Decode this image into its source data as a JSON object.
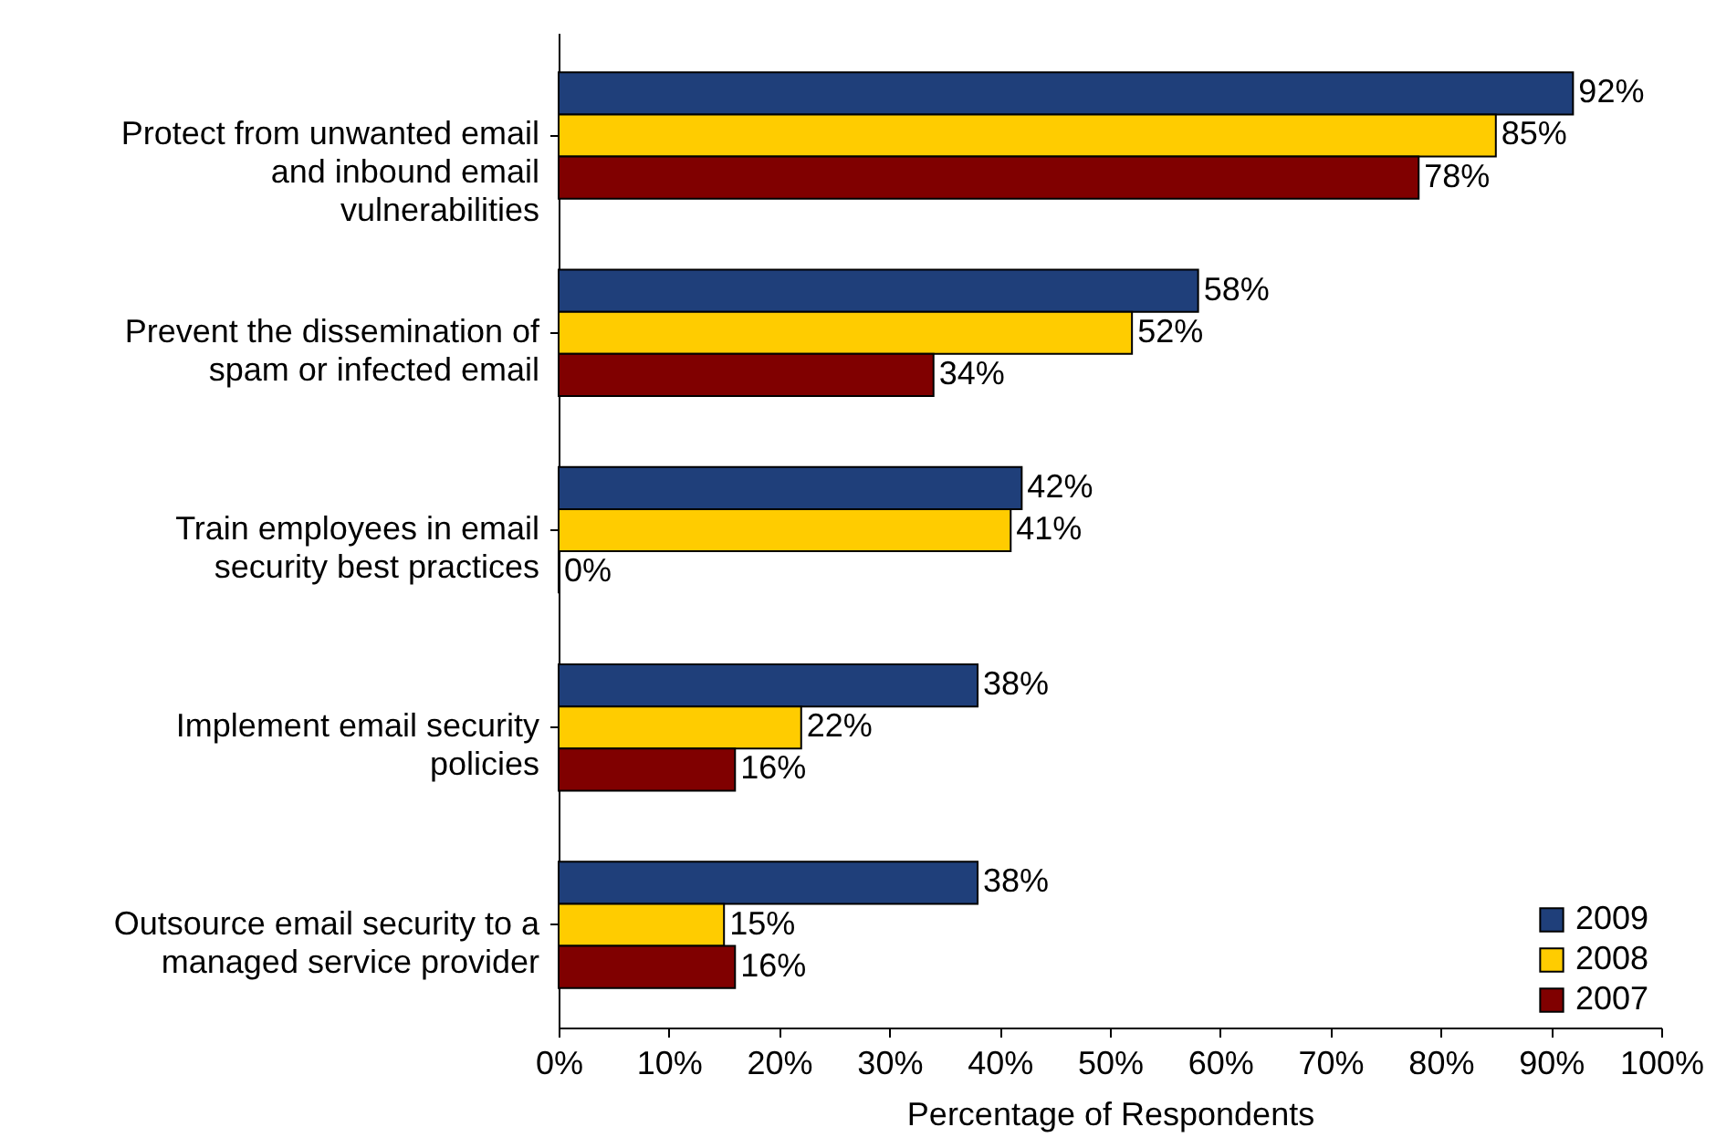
{
  "chart_data": {
    "type": "bar",
    "orientation": "horizontal",
    "xlabel": "Percentage of Respondents",
    "categories": [
      "Protect from unwanted email and inbound email vulnerabilities",
      "Prevent the dissemination of spam or infected email",
      "Train employees in email security best practices",
      "Implement email security policies",
      "Outsource email security to a managed service provider"
    ],
    "series": [
      {
        "name": "2009",
        "color": "#1f3f7a",
        "values": [
          92,
          58,
          42,
          38,
          38
        ],
        "value_labels": [
          "92%",
          "58%",
          "42%",
          "38%",
          "38%"
        ]
      },
      {
        "name": "2008",
        "color": "#ffcc00",
        "values": [
          85,
          52,
          41,
          22,
          15
        ],
        "value_labels": [
          "85%",
          "52%",
          "41%",
          "22%",
          "15%"
        ]
      },
      {
        "name": "2007",
        "color": "#800000",
        "values": [
          78,
          34,
          0,
          16,
          16
        ],
        "value_labels": [
          "78%",
          "34%",
          "0%",
          "16%",
          "16%"
        ]
      }
    ],
    "xlim": [
      0,
      100
    ],
    "xticks": [
      {
        "value": 0,
        "label": "0%"
      },
      {
        "value": 10,
        "label": "10%"
      },
      {
        "value": 20,
        "label": "20%"
      },
      {
        "value": 30,
        "label": "30%"
      },
      {
        "value": 40,
        "label": "40%"
      },
      {
        "value": 50,
        "label": "50%"
      },
      {
        "value": 60,
        "label": "60%"
      },
      {
        "value": 70,
        "label": "70%"
      },
      {
        "value": 80,
        "label": "80%"
      },
      {
        "value": 90,
        "label": "90%"
      },
      {
        "value": 100,
        "label": "100%"
      }
    ],
    "legend": "bottom right"
  }
}
